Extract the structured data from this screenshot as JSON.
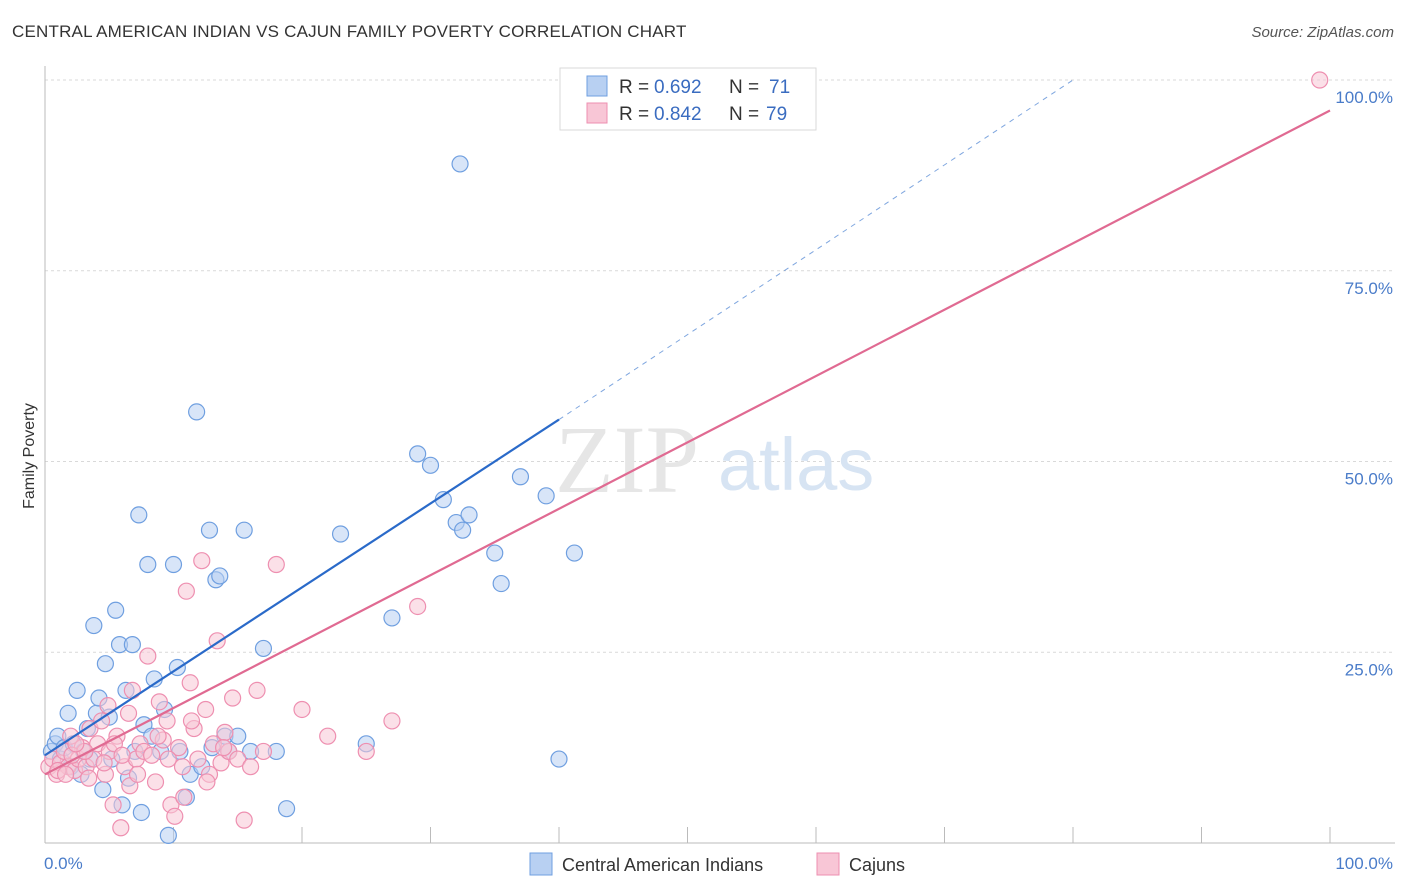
{
  "chart_data": {
    "type": "scatter",
    "title": "CENTRAL AMERICAN INDIAN VS CAJUN FAMILY POVERTY CORRELATION CHART",
    "source": "Source: ZipAtlas.com",
    "xlabel": "",
    "ylabel": "Family Poverty",
    "xlim": [
      0,
      100
    ],
    "ylim": [
      0,
      100
    ],
    "x_tick_labels": [
      "0.0%",
      "100.0%"
    ],
    "y_tick_labels": [
      "100.0%",
      "75.0%",
      "50.0%",
      "25.0%"
    ],
    "y_tick_values": [
      100,
      75,
      50,
      25
    ],
    "watermark": {
      "zip": "ZIP",
      "atlas": "atlas"
    },
    "legend": [
      {
        "r_label": "R =",
        "r_value": "0.692",
        "n_label": "N =",
        "n_value": "71"
      },
      {
        "r_label": "R =",
        "r_value": "0.842",
        "n_label": "N =",
        "n_value": "79"
      }
    ],
    "series": [
      {
        "name": "Central American Indians",
        "color": "#6f9fe0",
        "fill": "#b8d0f2",
        "line_color": "#2a6ac9",
        "trend": {
          "x0": 0,
          "y0": 11.5,
          "x1": 40,
          "y1": 55.5,
          "dash_x1": 80,
          "dash_y1": 100
        },
        "points": [
          [
            0.5,
            12
          ],
          [
            0.8,
            13
          ],
          [
            1,
            14
          ],
          [
            1.2,
            11
          ],
          [
            1.5,
            12.5
          ],
          [
            1.8,
            17
          ],
          [
            2,
            10
          ],
          [
            2.2,
            13
          ],
          [
            2.5,
            20
          ],
          [
            2.8,
            9
          ],
          [
            3,
            12
          ],
          [
            3.3,
            15
          ],
          [
            3.5,
            11
          ],
          [
            3.8,
            28.5
          ],
          [
            4,
            17
          ],
          [
            4.2,
            19
          ],
          [
            4.5,
            7
          ],
          [
            4.7,
            23.5
          ],
          [
            5,
            16.5
          ],
          [
            5.2,
            11
          ],
          [
            5.5,
            30.5
          ],
          [
            5.8,
            26
          ],
          [
            6,
            5
          ],
          [
            6.3,
            20
          ],
          [
            6.5,
            8.5
          ],
          [
            6.8,
            26
          ],
          [
            7,
            12
          ],
          [
            7.3,
            43
          ],
          [
            7.5,
            4
          ],
          [
            7.7,
            15.5
          ],
          [
            8,
            36.5
          ],
          [
            8.3,
            14
          ],
          [
            8.5,
            21.5
          ],
          [
            9,
            12
          ],
          [
            9.3,
            17.5
          ],
          [
            9.6,
            1
          ],
          [
            10,
            36.5
          ],
          [
            10.3,
            23
          ],
          [
            10.5,
            12
          ],
          [
            11,
            6
          ],
          [
            11.3,
            9
          ],
          [
            11.8,
            56.5
          ],
          [
            12.2,
            10
          ],
          [
            12.8,
            41
          ],
          [
            13,
            12.5
          ],
          [
            13.3,
            34.5
          ],
          [
            13.6,
            35
          ],
          [
            14,
            14
          ],
          [
            14.3,
            12
          ],
          [
            15,
            14
          ],
          [
            15.5,
            41
          ],
          [
            16,
            12
          ],
          [
            17,
            25.5
          ],
          [
            18,
            12
          ],
          [
            18.8,
            4.5
          ],
          [
            23,
            40.5
          ],
          [
            25,
            13
          ],
          [
            27,
            29.5
          ],
          [
            29,
            51
          ],
          [
            30,
            49.5
          ],
          [
            31,
            45
          ],
          [
            32,
            42
          ],
          [
            32.5,
            41
          ],
          [
            33,
            43
          ],
          [
            35,
            38
          ],
          [
            35.5,
            34
          ],
          [
            37,
            48
          ],
          [
            39,
            45.5
          ],
          [
            40,
            11
          ],
          [
            32.3,
            89
          ],
          [
            41.2,
            38
          ]
        ]
      },
      {
        "name": "Cajuns",
        "color": "#ee8fb0",
        "fill": "#f8c6d6",
        "line_color": "#e06a92",
        "trend": {
          "x0": 0,
          "y0": 9,
          "x1": 100,
          "y1": 96
        },
        "points": [
          [
            0.3,
            10
          ],
          [
            0.6,
            11
          ],
          [
            0.9,
            9
          ],
          [
            1.2,
            10.5
          ],
          [
            1.5,
            12
          ],
          [
            1.8,
            10
          ],
          [
            2,
            14
          ],
          [
            2.3,
            9.5
          ],
          [
            2.6,
            11
          ],
          [
            2.9,
            12.5
          ],
          [
            3.2,
            10
          ],
          [
            3.5,
            15
          ],
          [
            3.8,
            11
          ],
          [
            4.1,
            13
          ],
          [
            4.4,
            16
          ],
          [
            4.7,
            9
          ],
          [
            5,
            12
          ],
          [
            5.3,
            5
          ],
          [
            5.6,
            14
          ],
          [
            5.9,
            2
          ],
          [
            6.2,
            10
          ],
          [
            6.5,
            17
          ],
          [
            6.8,
            20
          ],
          [
            7.1,
            11
          ],
          [
            7.4,
            13
          ],
          [
            7.7,
            12
          ],
          [
            8,
            24.5
          ],
          [
            8.3,
            11.5
          ],
          [
            8.6,
            8
          ],
          [
            8.9,
            18.5
          ],
          [
            9.2,
            13.5
          ],
          [
            9.5,
            16
          ],
          [
            9.8,
            5
          ],
          [
            10.1,
            3.5
          ],
          [
            10.4,
            12.5
          ],
          [
            10.7,
            10
          ],
          [
            11,
            33
          ],
          [
            11.3,
            21
          ],
          [
            11.6,
            15
          ],
          [
            11.9,
            11
          ],
          [
            12.2,
            37
          ],
          [
            12.5,
            17.5
          ],
          [
            12.8,
            9
          ],
          [
            13.1,
            13
          ],
          [
            13.4,
            26.5
          ],
          [
            13.7,
            10.5
          ],
          [
            14,
            14.5
          ],
          [
            14.3,
            12
          ],
          [
            14.6,
            19
          ],
          [
            15,
            11
          ],
          [
            15.5,
            3
          ],
          [
            16,
            10
          ],
          [
            16.5,
            20
          ],
          [
            17,
            12
          ],
          [
            18,
            36.5
          ],
          [
            20,
            17.5
          ],
          [
            22,
            14
          ],
          [
            25,
            12
          ],
          [
            27,
            16
          ],
          [
            29,
            31
          ],
          [
            1,
            9.5
          ],
          [
            2.1,
            11.5
          ],
          [
            3.4,
            8.5
          ],
          [
            4.6,
            10.5
          ],
          [
            5.4,
            13
          ],
          [
            6.6,
            7.5
          ],
          [
            7.2,
            9
          ],
          [
            8.8,
            14
          ],
          [
            9.6,
            11
          ],
          [
            10.8,
            6
          ],
          [
            11.4,
            16
          ],
          [
            12.6,
            8
          ],
          [
            13.9,
            12.5
          ],
          [
            4.9,
            18
          ],
          [
            3.1,
            12
          ],
          [
            2.4,
            13
          ],
          [
            6,
            11.5
          ],
          [
            1.6,
            9
          ],
          [
            99.2,
            100
          ]
        ]
      }
    ]
  }
}
